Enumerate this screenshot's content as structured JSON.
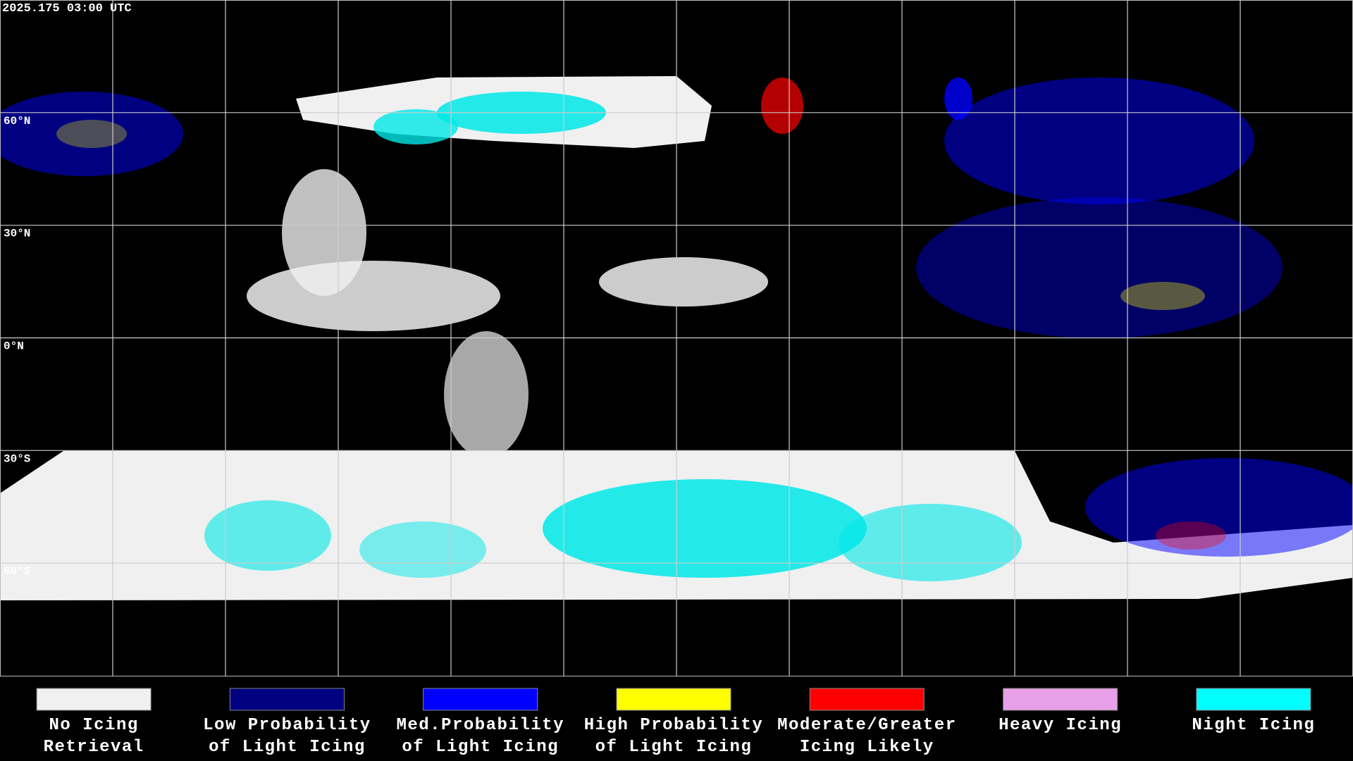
{
  "header": {
    "timestamp": "2025.175 03:00 UTC"
  },
  "map": {
    "latitude_labels": [
      "60°N",
      "30°N",
      "0°N",
      "30°S",
      "60°S"
    ]
  },
  "legend": {
    "items": [
      {
        "color": "#f0f0f0",
        "lines": [
          "No Icing",
          "Retrieval"
        ]
      },
      {
        "color": "#000080",
        "lines": [
          "Low Probability",
          "of Light Icing"
        ]
      },
      {
        "color": "#0000ff",
        "lines": [
          "Med.Probability",
          "of Light Icing"
        ]
      },
      {
        "color": "#ffff00",
        "lines": [
          "High Probability",
          "of Light Icing"
        ]
      },
      {
        "color": "#ff0000",
        "lines": [
          "Moderate/Greater",
          "Icing Likely"
        ]
      },
      {
        "color": "#e8a0e8",
        "lines": [
          "Heavy Icing"
        ]
      },
      {
        "color": "#00ffff",
        "lines": [
          "Night Icing"
        ]
      }
    ]
  }
}
